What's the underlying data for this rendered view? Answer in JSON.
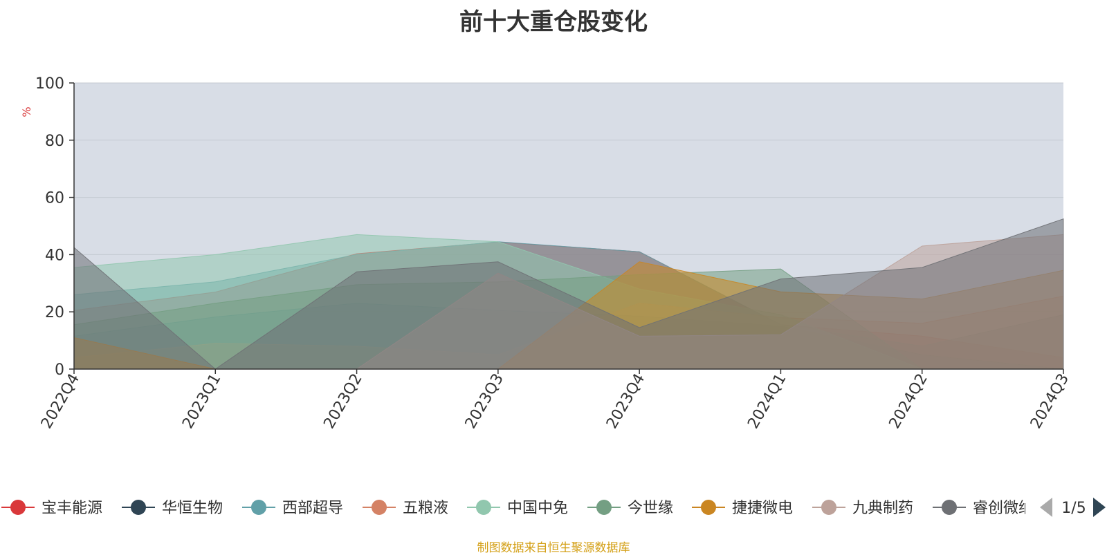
{
  "chart_data": {
    "type": "area",
    "title": "前十大重仓股变化",
    "ylabel": "%",
    "ylim": [
      0,
      100
    ],
    "yticks": [
      0,
      20,
      40,
      60,
      80,
      100
    ],
    "categories": [
      "2022Q4",
      "2023Q1",
      "2023Q2",
      "2023Q3",
      "2023Q4",
      "2024Q1",
      "2024Q2",
      "2024Q3"
    ],
    "grid": true,
    "legend_position": "bottom",
    "legend_page": "1/5",
    "series": [
      {
        "name": "宝丰能源",
        "color": "#d9383a",
        "values": [
          20.5,
          26.9,
          40.3,
          44.4,
          41.0,
          15.5,
          11.5,
          4.0
        ]
      },
      {
        "name": "华恒生物",
        "color": "#2f4554",
        "values": [
          11.5,
          18.2,
          23.0,
          20.5,
          18.5,
          15.0,
          5.0,
          0
        ]
      },
      {
        "name": "西部超导",
        "color": "#61a0a8",
        "values": [
          26.0,
          30.5,
          40.0,
          44.5,
          41.0,
          15.5,
          8.0,
          19.0
        ]
      },
      {
        "name": "五粮液",
        "color": "#d48265",
        "values": [
          4.0,
          9.0,
          8.0,
          5.0,
          23.0,
          18.0,
          16.0,
          25.5
        ]
      },
      {
        "name": "中国中免",
        "color": "#91c7ae",
        "values": [
          35.5,
          40.0,
          47.0,
          44.5,
          28.0,
          19.0,
          0,
          0
        ]
      },
      {
        "name": "今世缘",
        "color": "#749f83",
        "values": [
          15.5,
          23.0,
          29.5,
          30.5,
          33.0,
          35.0,
          0,
          0
        ]
      },
      {
        "name": "捷捷微电",
        "color": "#ca8622",
        "values": [
          11.0,
          0,
          0,
          0,
          37.5,
          27.0,
          24.5,
          34.5
        ]
      },
      {
        "name": "九典制药",
        "color": "#bda29a",
        "values": [
          0,
          0,
          0,
          33.5,
          11.5,
          12.0,
          43.0,
          47.0
        ]
      },
      {
        "name": "睿创微纳",
        "color": "#6e7074",
        "values": [
          42.5,
          0,
          34.0,
          37.5,
          14.5,
          31.5,
          35.5,
          52.5
        ]
      }
    ]
  },
  "legend": {
    "visible_items": [
      {
        "name": "宝丰能源",
        "color": "#d9383a"
      },
      {
        "name": "华恒生物",
        "color": "#2f4554"
      },
      {
        "name": "西部超导",
        "color": "#61a0a8"
      },
      {
        "name": "五粮液",
        "color": "#d48265"
      },
      {
        "name": "中国中免",
        "color": "#91c7ae"
      },
      {
        "name": "今世缘",
        "color": "#749f83"
      },
      {
        "name": "捷捷微电",
        "color": "#ca8622"
      },
      {
        "name": "九典制药",
        "color": "#bda29a"
      },
      {
        "name": "睿创微纳",
        "color": "#6e7074"
      }
    ],
    "page_indicator": "1/5"
  },
  "source_note": "制图数据来自恒生聚源数据库",
  "colors": {
    "plot_background": "#d8dde6",
    "grid": "#c4c9d2",
    "axis": "#333333",
    "pager_inactive": "#aaaaaa",
    "pager_active": "#2f4554"
  }
}
